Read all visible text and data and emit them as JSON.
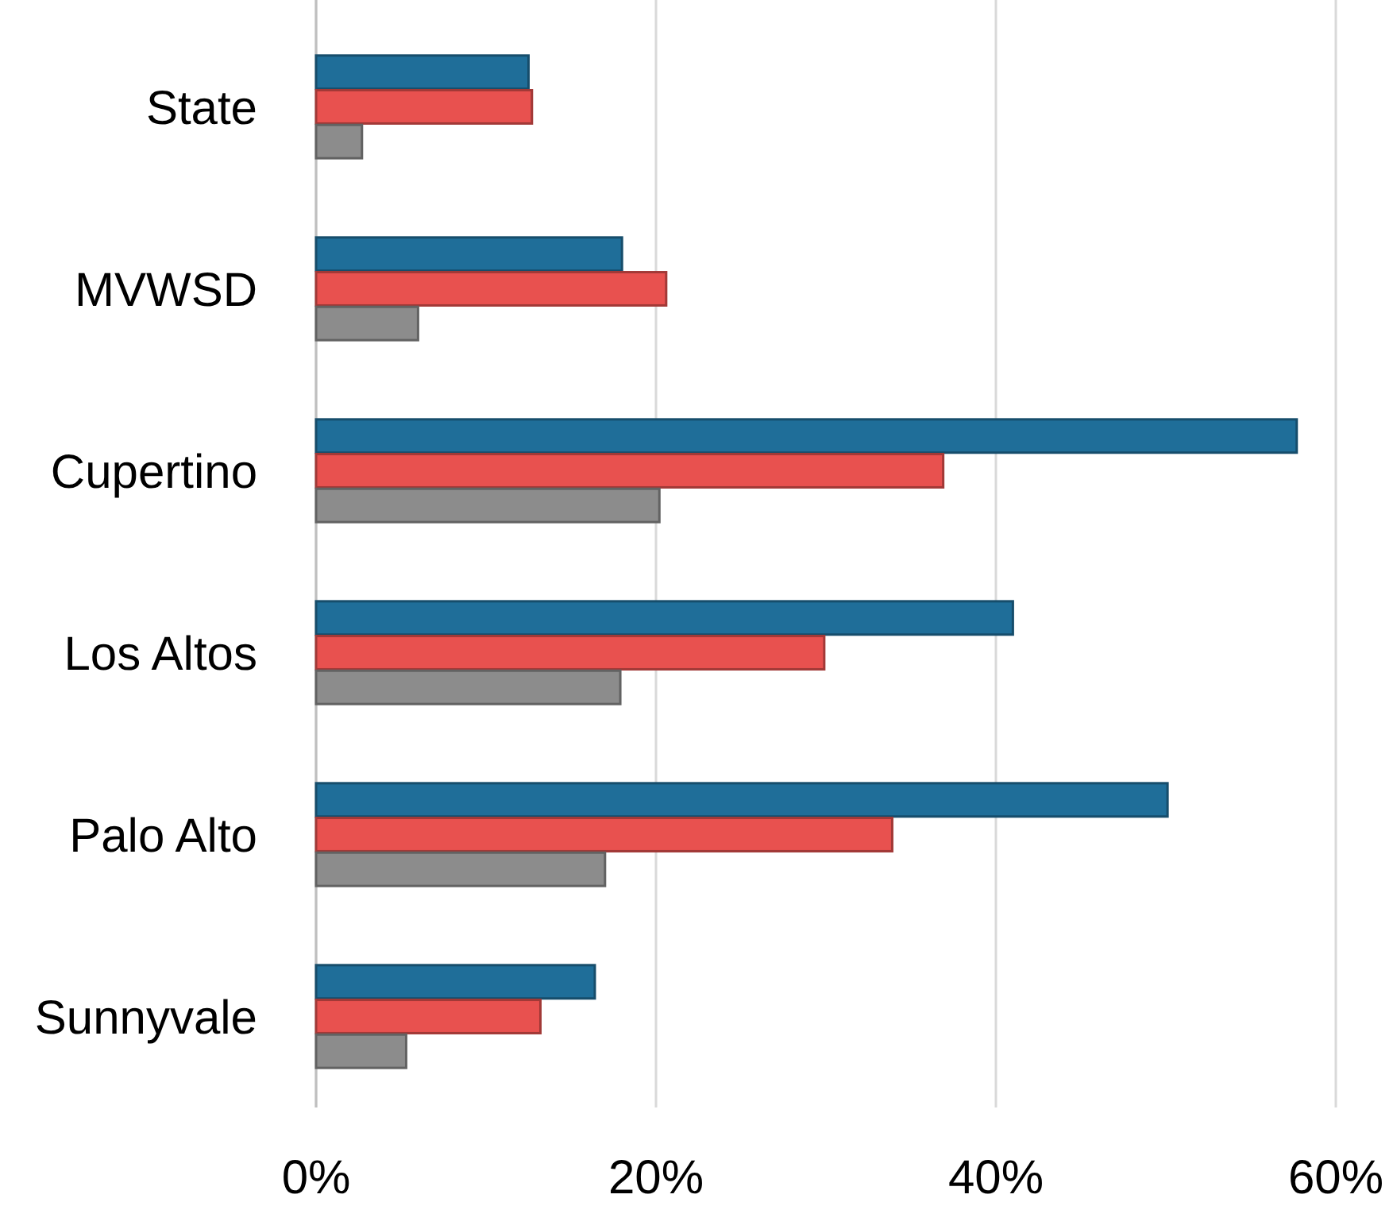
{
  "chart_data": {
    "type": "bar",
    "orientation": "horizontal",
    "categories": [
      "State",
      "MVWSD",
      "Cupertino",
      "Los Altos",
      "Palo Alto",
      "Sunnyvale"
    ],
    "series": [
      {
        "color": "#1f6e99",
        "values": [
          12.5,
          18.0,
          57.7,
          41.0,
          50.1,
          16.4
        ]
      },
      {
        "color": "#e8514f",
        "values": [
          12.7,
          20.6,
          36.9,
          29.9,
          33.9,
          13.2
        ]
      },
      {
        "color": "#8c8c8c",
        "values": [
          2.7,
          6.0,
          20.2,
          17.9,
          17.0,
          5.3
        ]
      }
    ],
    "xlim": [
      0,
      60
    ],
    "xticks": [
      {
        "value": 0,
        "label": "0%"
      },
      {
        "value": 20,
        "label": "20%"
      },
      {
        "value": 40,
        "label": "40%"
      },
      {
        "value": 60,
        "label": "60%"
      }
    ],
    "grid": "x"
  }
}
